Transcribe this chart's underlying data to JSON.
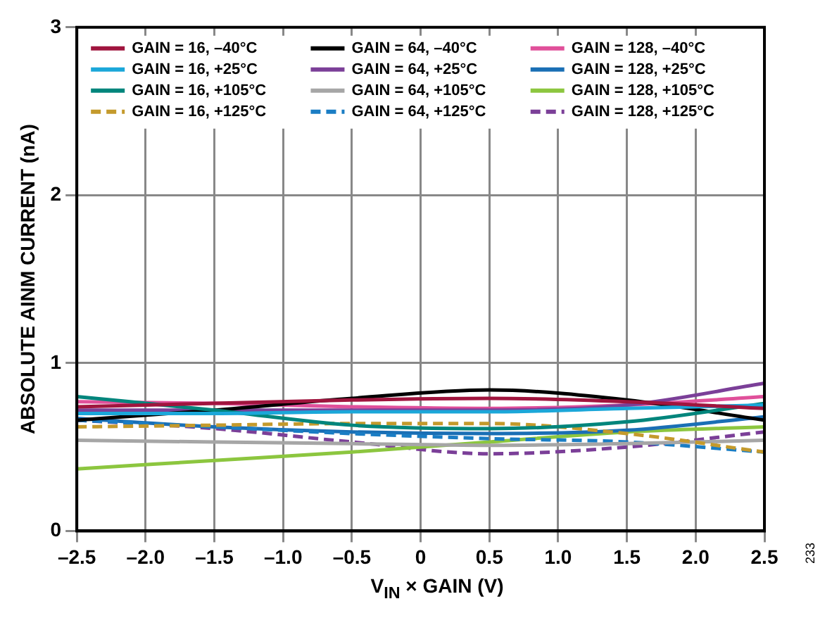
{
  "chart_data": {
    "type": "line",
    "xlabel": "V$_{IN}$ × GAIN (V)",
    "ylabel": "ABSOLUTE AINM CURRENT (nA)",
    "annotations": [
      "233"
    ],
    "x": [
      -2.5,
      -1.5,
      -0.5,
      0.5,
      1.5,
      2.5
    ],
    "xlim": [
      -2.5,
      2.5
    ],
    "xticks": [
      {
        "value": -2.5,
        "label": "–2.5"
      },
      {
        "value": -2,
        "label": "–2.0"
      },
      {
        "value": -1.5,
        "label": "–1.5"
      },
      {
        "value": -1,
        "label": "–1.0"
      },
      {
        "value": -0.5,
        "label": "–0.5"
      },
      0,
      0.5,
      {
        "value": 1,
        "label": "1.0"
      },
      1.5,
      {
        "value": 2,
        "label": "2.0"
      },
      2.5
    ],
    "ylim": [
      0,
      3
    ],
    "yticks": [
      0,
      1,
      2,
      3
    ],
    "grid": true,
    "legend": "top",
    "marker": "none",
    "series": [
      {
        "name": "GAIN = 16, –40°C",
        "color": "#a0153e",
        "line_style": "solid",
        "values": [
          0.74,
          0.76,
          0.78,
          0.79,
          0.77,
          0.73
        ]
      },
      {
        "name": "GAIN = 16, +25°C",
        "color": "#1ba7d9",
        "line_style": "solid",
        "values": [
          0.7,
          0.7,
          0.71,
          0.71,
          0.73,
          0.75
        ]
      },
      {
        "name": "GAIN = 16, +105°C",
        "color": "#00857c",
        "line_style": "solid",
        "values": [
          0.8,
          0.72,
          0.63,
          0.61,
          0.65,
          0.76
        ]
      },
      {
        "name": "GAIN = 16, +125°C",
        "color": "#c49a2c",
        "line_style": "dashed",
        "values": [
          0.62,
          0.63,
          0.64,
          0.64,
          0.58,
          0.47
        ]
      },
      {
        "name": "GAIN = 64, –40°C",
        "color": "#000000",
        "line_style": "solid",
        "values": [
          0.66,
          0.72,
          0.79,
          0.84,
          0.78,
          0.66
        ]
      },
      {
        "name": "GAIN = 64, +25°C",
        "color": "#7b3f98",
        "line_style": "solid",
        "values": [
          0.72,
          0.72,
          0.72,
          0.72,
          0.75,
          0.88
        ]
      },
      {
        "name": "GAIN = 64, +105°C",
        "color": "#a6a6a6",
        "line_style": "solid",
        "values": [
          0.54,
          0.53,
          0.52,
          0.51,
          0.52,
          0.54
        ]
      },
      {
        "name": "GAIN = 64, +125°C",
        "color": "#1a7dc4",
        "line_style": "dashed",
        "values": [
          0.66,
          0.62,
          0.58,
          0.55,
          0.53,
          0.47
        ]
      },
      {
        "name": "GAIN = 128, –40°C",
        "color": "#e0509a",
        "line_style": "solid",
        "values": [
          0.77,
          0.76,
          0.74,
          0.73,
          0.75,
          0.8
        ]
      },
      {
        "name": "GAIN = 128, +25°C",
        "color": "#1a6fb5",
        "line_style": "solid",
        "values": [
          0.67,
          0.62,
          0.59,
          0.58,
          0.6,
          0.68
        ]
      },
      {
        "name": "GAIN = 128, +105°C",
        "color": "#8cc63f",
        "line_style": "solid",
        "values": [
          0.37,
          0.42,
          0.47,
          0.53,
          0.59,
          0.62
        ]
      },
      {
        "name": "GAIN = 128, +125°C",
        "color": "#7b3f98",
        "line_style": "dashed",
        "values": [
          0.66,
          0.61,
          0.53,
          0.46,
          0.5,
          0.59
        ]
      }
    ]
  }
}
